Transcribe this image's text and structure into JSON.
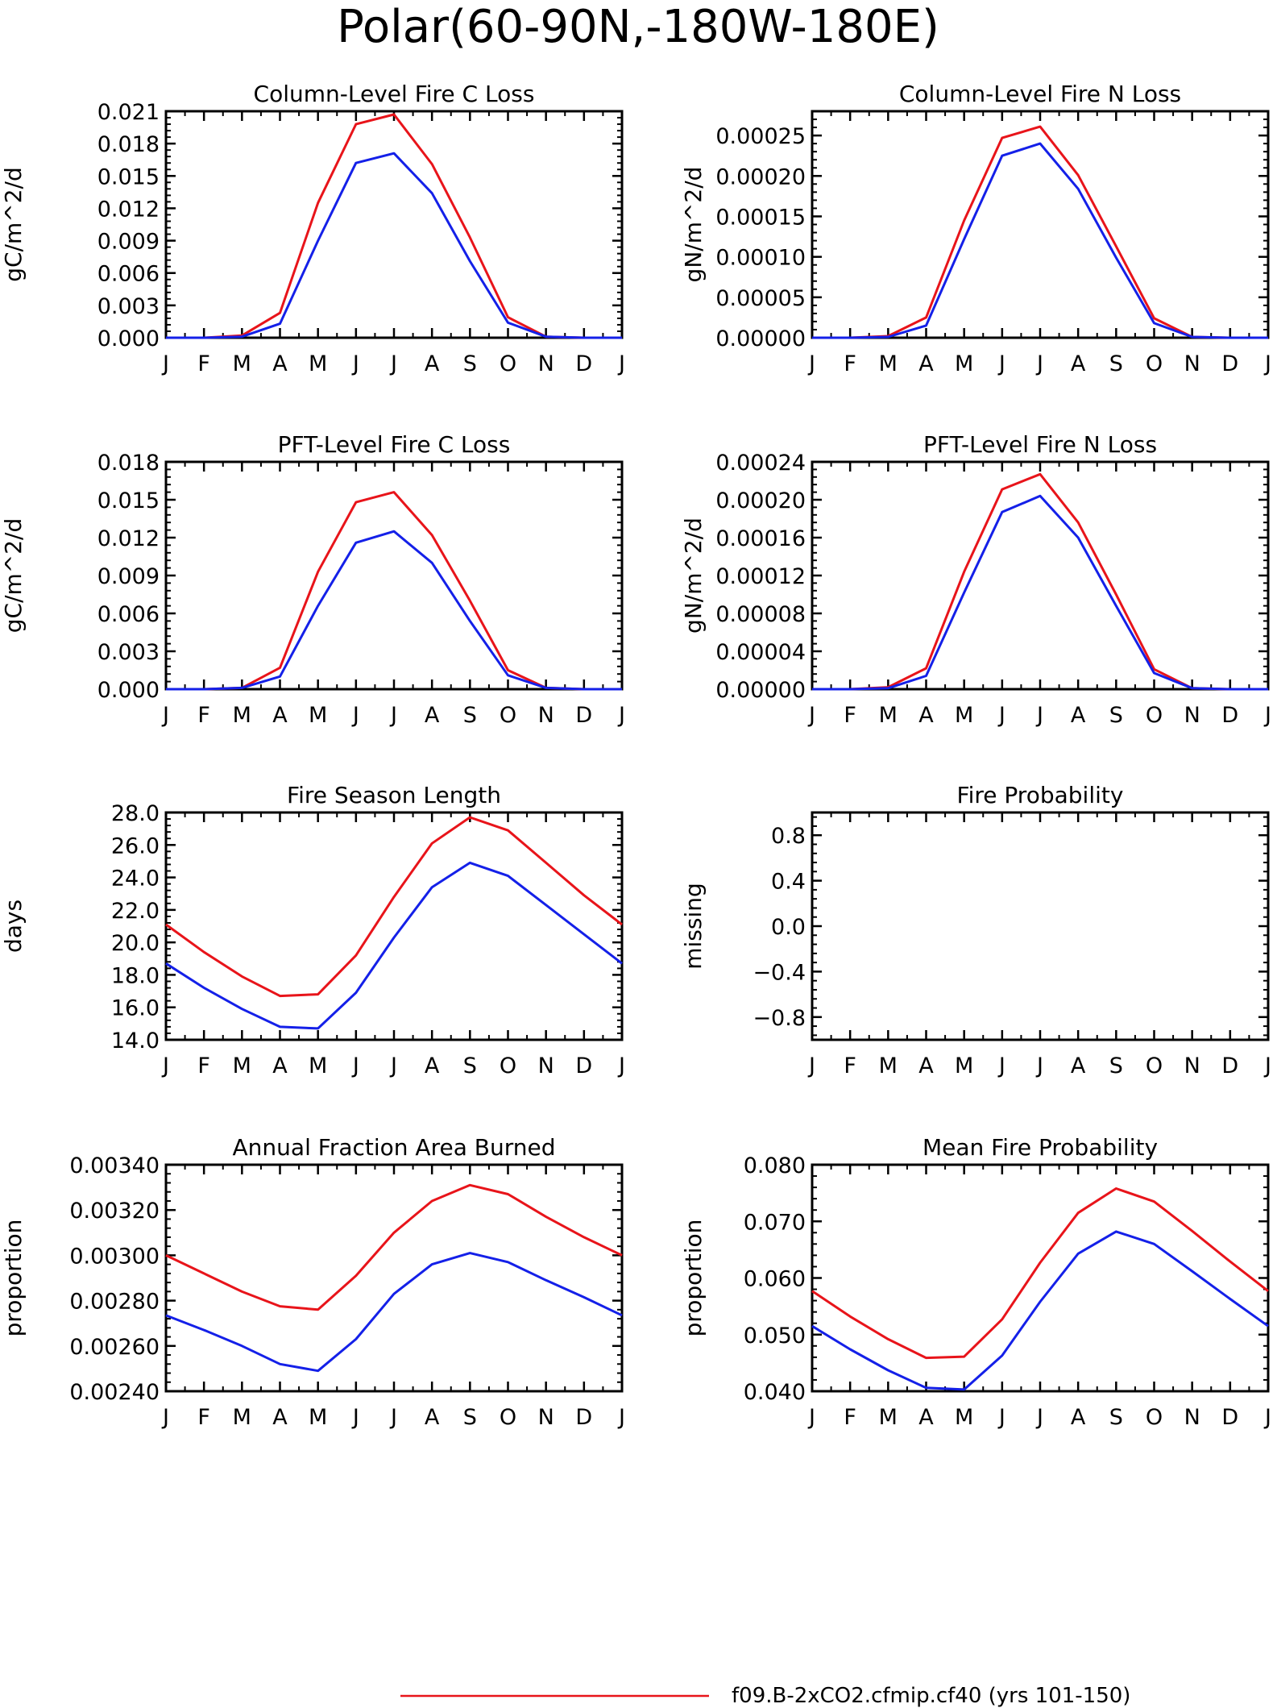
{
  "page": {
    "title": "Polar(60-90N,-180W-180E)",
    "legend": [
      {
        "label": "f09.B-2xCO2.cfmip.cf40 (yrs 101-150)",
        "color": "#e8141a"
      }
    ]
  },
  "colors": {
    "series_a": "#e8141a",
    "series_b": "#1420e8"
  },
  "chart_data": [
    {
      "type": "line",
      "title": "Column-Level Fire C Loss",
      "ylabel": "gC/m^2/d",
      "categories": [
        "J",
        "F",
        "M",
        "A",
        "M",
        "J",
        "J",
        "A",
        "S",
        "O",
        "N",
        "D",
        "J"
      ],
      "ylim": [
        0,
        0.021
      ],
      "yticks": [
        0.0,
        0.003,
        0.006,
        0.009,
        0.012,
        0.015,
        0.018,
        0.021
      ],
      "ytick_labels": [
        "0.000",
        "0.003",
        "0.006",
        "0.009",
        "0.012",
        "0.015",
        "0.018",
        "0.021"
      ],
      "series": [
        {
          "color": "#e8141a",
          "values": [
            0.0,
            0.0,
            0.0002,
            0.0023,
            0.0125,
            0.0198,
            0.0207,
            0.0161,
            0.0093,
            0.0019,
            0.0001,
            0.0,
            0.0
          ]
        },
        {
          "color": "#1420e8",
          "values": [
            0.0,
            0.0,
            0.0001,
            0.0013,
            0.009,
            0.0162,
            0.0171,
            0.0134,
            0.0071,
            0.0014,
            0.0001,
            0.0,
            0.0
          ]
        }
      ]
    },
    {
      "type": "line",
      "title": "Column-Level Fire N Loss",
      "ylabel": "gN/m^2/d",
      "categories": [
        "J",
        "F",
        "M",
        "A",
        "M",
        "J",
        "J",
        "A",
        "S",
        "O",
        "N",
        "D",
        "J"
      ],
      "ylim": [
        0,
        0.00028
      ],
      "yticks": [
        0,
        5e-05,
        0.0001,
        0.00015,
        0.0002,
        0.00025
      ],
      "ytick_labels": [
        "0.00000",
        "0.00005",
        "0.00010",
        "0.00015",
        "0.00020",
        "0.00025"
      ],
      "series": [
        {
          "color": "#e8141a",
          "values": [
            0.0,
            0.0,
            2e-06,
            2.5e-05,
            0.000145,
            0.000247,
            0.000261,
            0.000201,
            0.000113,
            2.4e-05,
            1e-06,
            0.0,
            0.0
          ]
        },
        {
          "color": "#1420e8",
          "values": [
            0.0,
            0.0,
            1e-06,
            1.5e-05,
            0.000122,
            0.000225,
            0.00024,
            0.000184,
            9.9e-05,
            1.8e-05,
            1e-06,
            0.0,
            0.0
          ]
        }
      ]
    },
    {
      "type": "line",
      "title": "PFT-Level Fire C Loss",
      "ylabel": "gC/m^2/d",
      "categories": [
        "J",
        "F",
        "M",
        "A",
        "M",
        "J",
        "J",
        "A",
        "S",
        "O",
        "N",
        "D",
        "J"
      ],
      "ylim": [
        0,
        0.018
      ],
      "yticks": [
        0.0,
        0.003,
        0.006,
        0.009,
        0.012,
        0.015,
        0.018
      ],
      "ytick_labels": [
        "0.000",
        "0.003",
        "0.006",
        "0.009",
        "0.012",
        "0.015",
        "0.018"
      ],
      "series": [
        {
          "color": "#e8141a",
          "values": [
            0.0,
            0.0,
            0.0001,
            0.0017,
            0.0093,
            0.0148,
            0.0156,
            0.0122,
            0.007,
            0.0015,
            0.0001,
            0.0,
            0.0
          ]
        },
        {
          "color": "#1420e8",
          "values": [
            0.0,
            0.0,
            0.0001,
            0.001,
            0.0066,
            0.0116,
            0.0125,
            0.01,
            0.0054,
            0.0011,
            0.0001,
            0.0,
            0.0
          ]
        }
      ]
    },
    {
      "type": "line",
      "title": "PFT-Level Fire N Loss",
      "ylabel": "gN/m^2/d",
      "categories": [
        "J",
        "F",
        "M",
        "A",
        "M",
        "J",
        "J",
        "A",
        "S",
        "O",
        "N",
        "D",
        "J"
      ],
      "ylim": [
        0,
        0.00024
      ],
      "yticks": [
        0,
        4e-05,
        8e-05,
        0.00012,
        0.00016,
        0.0002,
        0.00024
      ],
      "ytick_labels": [
        "0.00000",
        "0.00004",
        "0.00008",
        "0.00012",
        "0.00016",
        "0.00020",
        "0.00024"
      ],
      "series": [
        {
          "color": "#e8141a",
          "values": [
            0.0,
            0.0,
            2e-06,
            2.2e-05,
            0.000124,
            0.000211,
            0.000227,
            0.000176,
            0.0001,
            2.1e-05,
            1e-06,
            0.0,
            0.0
          ]
        },
        {
          "color": "#1420e8",
          "values": [
            0.0,
            0.0,
            1e-06,
            1.4e-05,
            0.000102,
            0.000187,
            0.000204,
            0.00016,
            8.8e-05,
            1.7e-05,
            1e-06,
            0.0,
            0.0
          ]
        }
      ]
    },
    {
      "type": "line",
      "title": "Fire Season Length",
      "ylabel": "days",
      "categories": [
        "J",
        "F",
        "M",
        "A",
        "M",
        "J",
        "J",
        "A",
        "S",
        "O",
        "N",
        "D",
        "J"
      ],
      "ylim": [
        14,
        28
      ],
      "yticks": [
        14,
        16,
        18,
        20,
        22,
        24,
        26,
        28
      ],
      "ytick_labels": [
        "14.0",
        "16.0",
        "18.0",
        "20.0",
        "22.0",
        "24.0",
        "26.0",
        "28.0"
      ],
      "series": [
        {
          "color": "#e8141a",
          "values": [
            21.1,
            19.4,
            17.9,
            16.7,
            16.8,
            19.2,
            22.8,
            26.1,
            27.7,
            26.9,
            24.9,
            22.9,
            21.1
          ]
        },
        {
          "color": "#1420e8",
          "values": [
            18.7,
            17.2,
            15.9,
            14.8,
            14.7,
            16.9,
            20.3,
            23.4,
            24.9,
            24.1,
            22.3,
            20.5,
            18.7
          ]
        }
      ]
    },
    {
      "type": "line",
      "title": "Fire Probability",
      "ylabel": "missing",
      "categories": [
        "J",
        "F",
        "M",
        "A",
        "M",
        "J",
        "J",
        "A",
        "S",
        "O",
        "N",
        "D",
        "J"
      ],
      "ylim": [
        -1,
        1
      ],
      "yticks": [
        -0.8,
        -0.4,
        0.0,
        0.4,
        0.8
      ],
      "ytick_labels": [
        "−0.8",
        "−0.4",
        "0.0",
        "0.4",
        "0.8"
      ],
      "series": []
    },
    {
      "type": "line",
      "title": "Annual Fraction Area Burned",
      "ylabel": "proportion",
      "categories": [
        "J",
        "F",
        "M",
        "A",
        "M",
        "J",
        "J",
        "A",
        "S",
        "O",
        "N",
        "D",
        "J"
      ],
      "ylim": [
        0.0024,
        0.0034
      ],
      "yticks": [
        0.0024,
        0.0026,
        0.0028,
        0.003,
        0.0032,
        0.0034
      ],
      "ytick_labels": [
        "0.00240",
        "0.00260",
        "0.00280",
        "0.00300",
        "0.00320",
        "0.00340"
      ],
      "series": [
        {
          "color": "#e8141a",
          "values": [
            0.003,
            0.00292,
            0.00284,
            0.002775,
            0.00276,
            0.00291,
            0.0031,
            0.00324,
            0.00331,
            0.00327,
            0.00317,
            0.00308,
            0.003
          ]
        },
        {
          "color": "#1420e8",
          "values": [
            0.002735,
            0.00267,
            0.0026,
            0.00252,
            0.00249,
            0.00263,
            0.00283,
            0.00296,
            0.00301,
            0.00297,
            0.00289,
            0.002815,
            0.002735
          ]
        }
      ]
    },
    {
      "type": "line",
      "title": "Mean Fire Probability",
      "ylabel": "proportion",
      "categories": [
        "J",
        "F",
        "M",
        "A",
        "M",
        "J",
        "J",
        "A",
        "S",
        "O",
        "N",
        "D",
        "J"
      ],
      "ylim": [
        0.04,
        0.08
      ],
      "yticks": [
        0.04,
        0.05,
        0.06,
        0.07,
        0.08
      ],
      "ytick_labels": [
        "0.040",
        "0.050",
        "0.060",
        "0.070",
        "0.080"
      ],
      "series": [
        {
          "color": "#e8141a",
          "values": [
            0.0577,
            0.0532,
            0.0492,
            0.0459,
            0.0461,
            0.0527,
            0.0627,
            0.0715,
            0.0758,
            0.0735,
            0.0683,
            0.0629,
            0.0577
          ]
        },
        {
          "color": "#1420e8",
          "values": [
            0.0515,
            0.0474,
            0.0437,
            0.0406,
            0.0403,
            0.0463,
            0.0558,
            0.0643,
            0.0682,
            0.066,
            0.0612,
            0.0563,
            0.0515
          ]
        }
      ]
    }
  ]
}
